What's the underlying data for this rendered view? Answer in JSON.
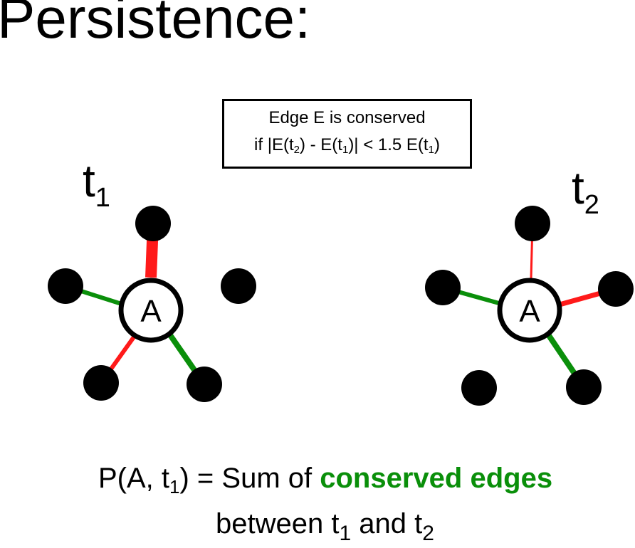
{
  "title": "Persistence:",
  "rule": {
    "line1": "Edge E is conserved",
    "line2_prefix": "if |E(t",
    "sub_2": "2",
    "line2_mid1": ") - E(t",
    "sub_1a": "1",
    "line2_mid2": ")| < 1.5 E(t",
    "sub_1b": "1",
    "line2_suffix": ")"
  },
  "graph1": {
    "label_main": "t",
    "label_sub": "1",
    "center_label": "A",
    "edge_colors": [
      "red",
      "green",
      "red",
      "green"
    ]
  },
  "graph2": {
    "label_main": "t",
    "label_sub": "2",
    "center_label": "A",
    "edge_colors": [
      "red",
      "green",
      "red",
      "green"
    ]
  },
  "colors": {
    "red": "#ff1a1a",
    "green": "#0a8f0a",
    "node": "#000000"
  },
  "formula": {
    "prefix": "P(A, t",
    "sub1": "1",
    "equals": ") = Sum of ",
    "highlight": "conserved edges",
    "line2_prefix": "between t",
    "line2_sub1": "1",
    "line2_mid": " and t",
    "line2_sub2": "2"
  }
}
